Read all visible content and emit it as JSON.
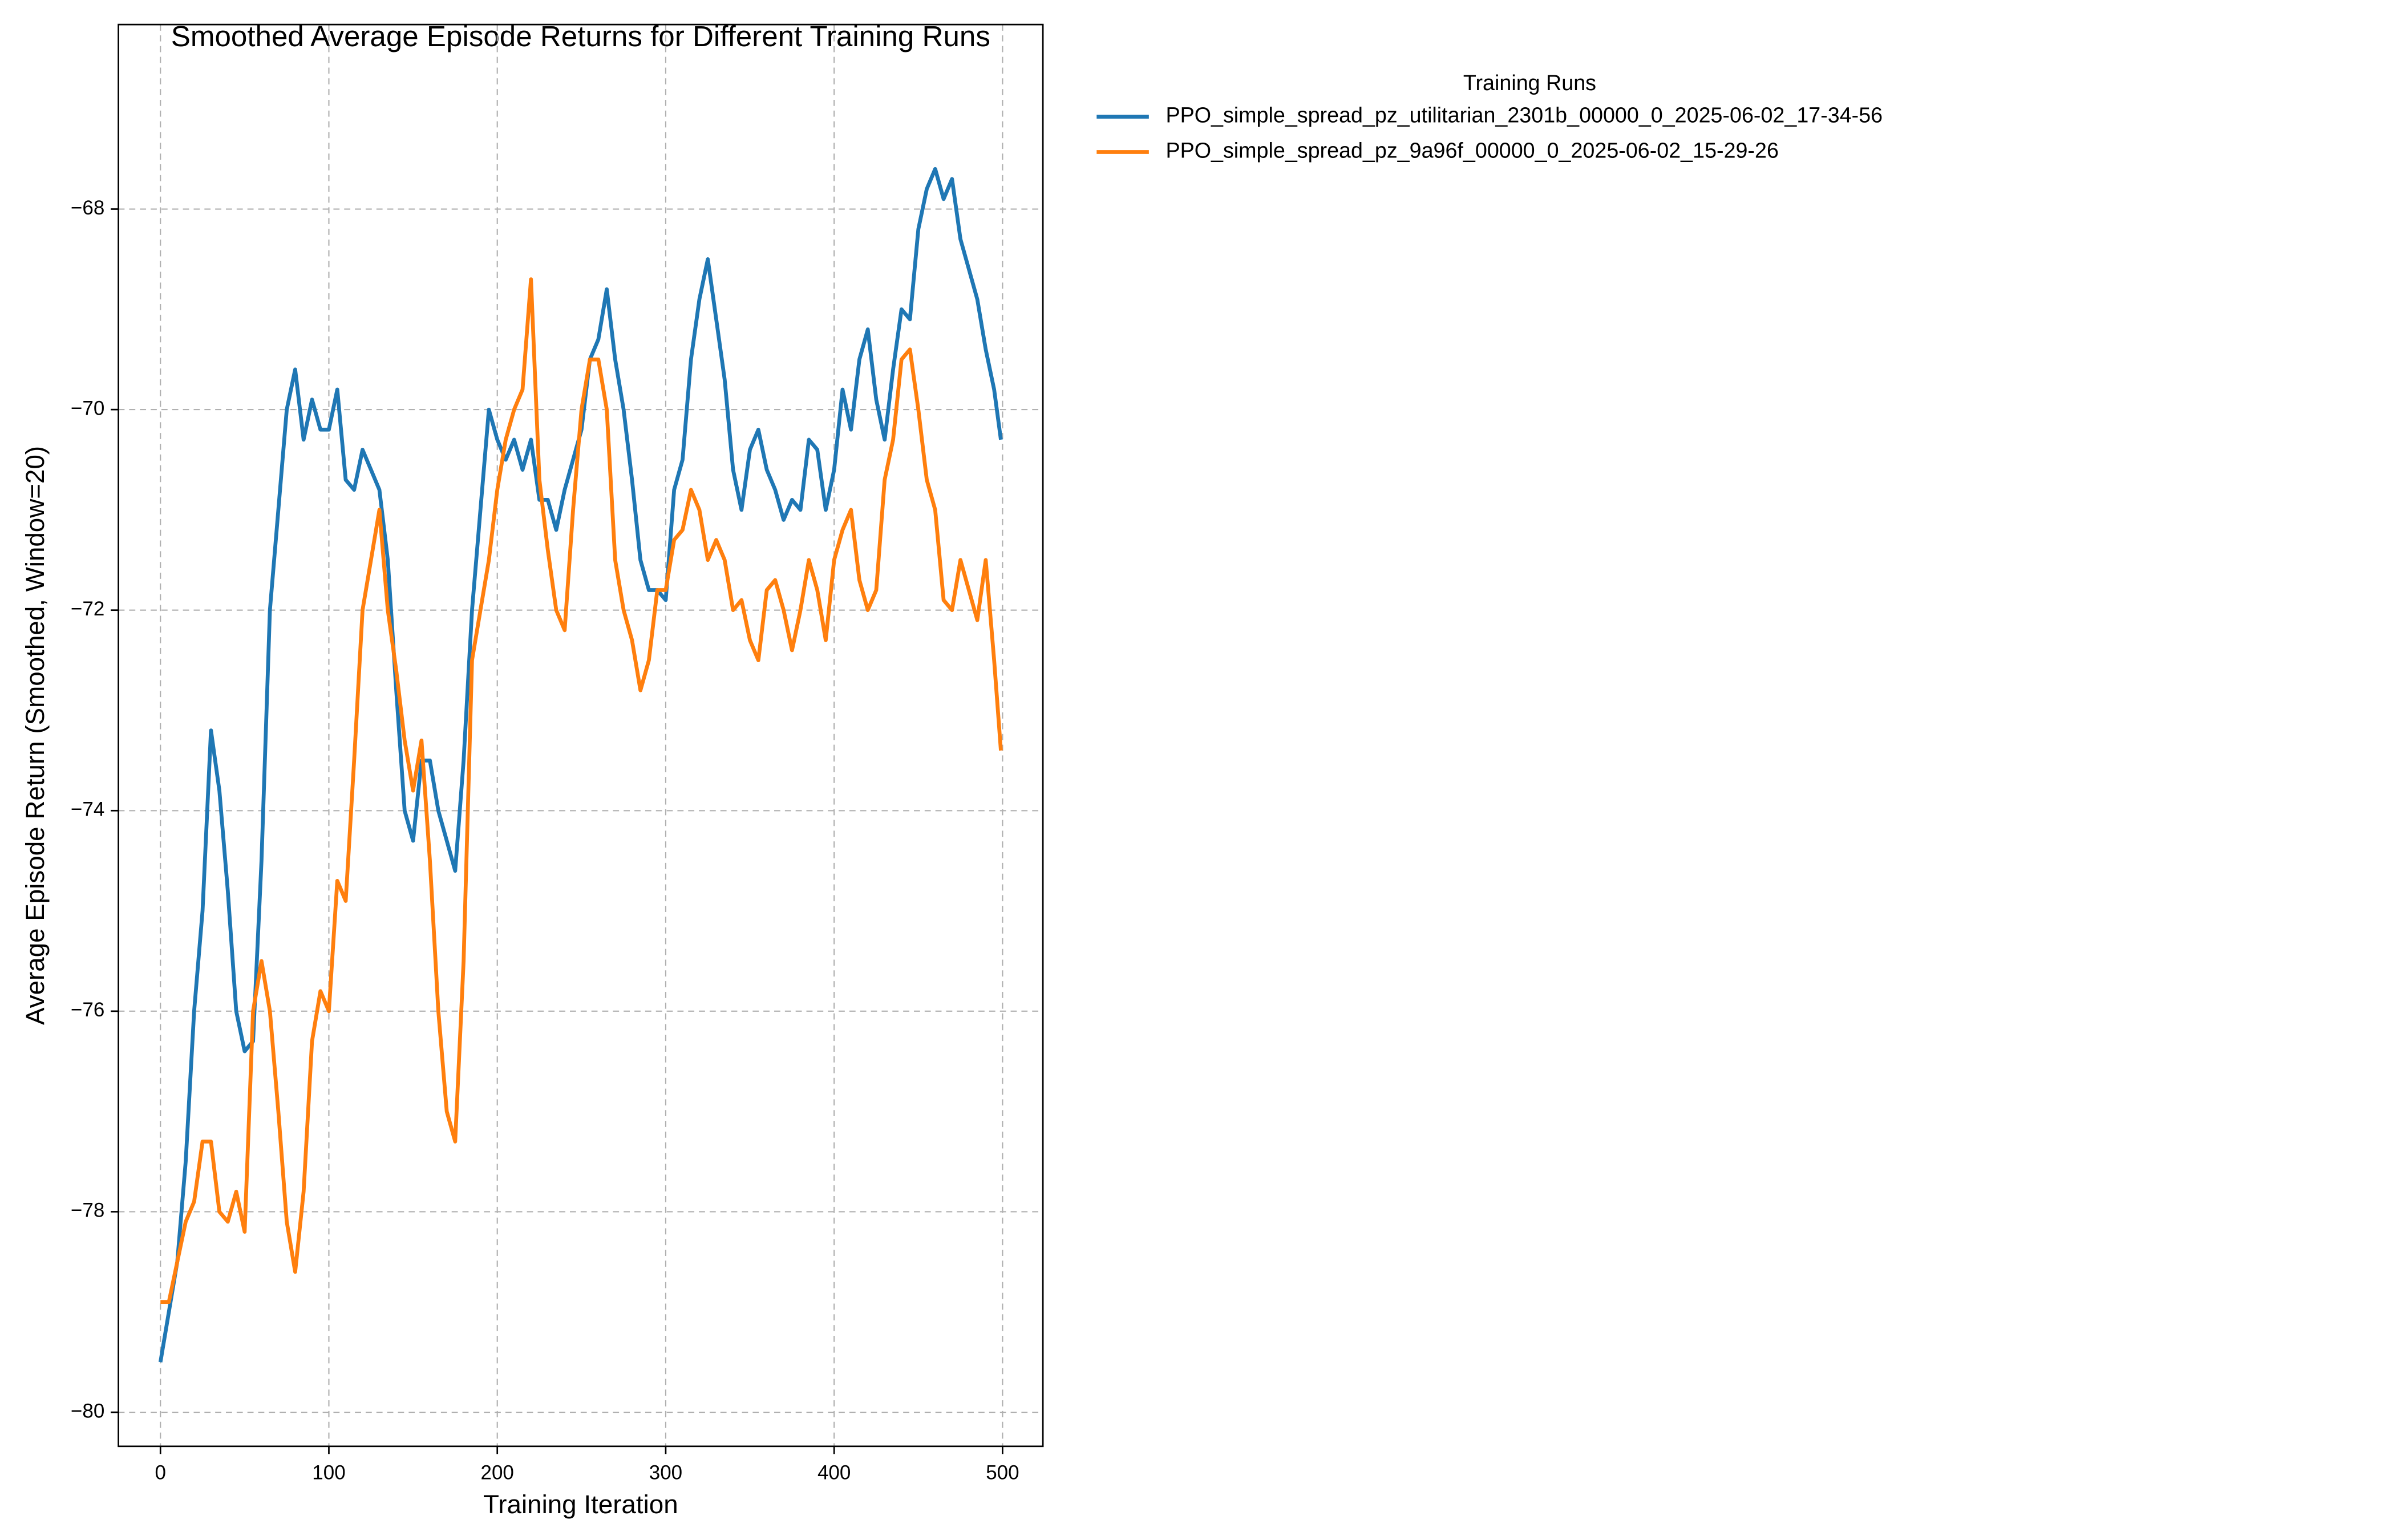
{
  "chart_data": {
    "type": "line",
    "title": "Smoothed Average Episode Returns for Different Training Runs",
    "x_label": "Training Iteration",
    "y_label": "Average Episode Return (Smoothed, Window=20)",
    "legend_title": "Training Runs",
    "legend_position": "outside upper right",
    "grid": true,
    "xlim": [
      -24.95,
      523.95
    ],
    "ylim": [
      -80.34,
      -66.16
    ],
    "xticks": [
      0,
      100,
      200,
      300,
      400,
      500
    ],
    "yticks": [
      {
        "value": -80,
        "label": "−80"
      },
      {
        "value": -78,
        "label": "−78"
      },
      {
        "value": -76,
        "label": "−76"
      },
      {
        "value": -74,
        "label": "−74"
      },
      {
        "value": -72,
        "label": "−72"
      },
      {
        "value": -70,
        "label": "−70"
      },
      {
        "value": -68,
        "label": "−68"
      }
    ],
    "x": [
      0,
      5,
      10,
      15,
      20,
      25,
      30,
      35,
      40,
      45,
      50,
      55,
      60,
      65,
      70,
      75,
      80,
      85,
      90,
      95,
      100,
      105,
      110,
      115,
      120,
      125,
      130,
      135,
      140,
      145,
      150,
      155,
      160,
      165,
      170,
      175,
      180,
      185,
      190,
      195,
      200,
      205,
      210,
      215,
      220,
      225,
      230,
      235,
      240,
      245,
      250,
      255,
      260,
      265,
      270,
      275,
      280,
      285,
      290,
      295,
      300,
      305,
      310,
      315,
      320,
      325,
      330,
      335,
      340,
      345,
      350,
      355,
      360,
      365,
      370,
      375,
      380,
      385,
      390,
      395,
      400,
      405,
      410,
      415,
      420,
      425,
      430,
      435,
      440,
      445,
      450,
      455,
      460,
      465,
      470,
      475,
      480,
      485,
      490,
      495,
      499
    ],
    "series": [
      {
        "name": "PPO_simple_spread_pz_utilitarian_2301b_00000_0_2025-06-02_17-34-56",
        "color": "#1f77b4",
        "values": [
          -79.5,
          -79.0,
          -78.5,
          -77.5,
          -76.0,
          -75.0,
          -73.2,
          -73.8,
          -74.8,
          -76.0,
          -76.4,
          -76.3,
          -74.5,
          -72.0,
          -71.0,
          -70.0,
          -69.6,
          -70.3,
          -69.9,
          -70.2,
          -70.2,
          -69.8,
          -70.7,
          -70.8,
          -70.4,
          -70.6,
          -70.8,
          -71.5,
          -72.8,
          -74.0,
          -74.3,
          -73.5,
          -73.5,
          -74.0,
          -74.3,
          -74.6,
          -73.5,
          -72.0,
          -71.0,
          -70.0,
          -70.3,
          -70.5,
          -70.3,
          -70.6,
          -70.3,
          -70.9,
          -70.9,
          -71.2,
          -70.8,
          -70.5,
          -70.2,
          -69.5,
          -69.3,
          -68.8,
          -69.5,
          -70.0,
          -70.7,
          -71.5,
          -71.8,
          -71.8,
          -71.9,
          -70.8,
          -70.5,
          -69.5,
          -68.9,
          -68.5,
          -69.1,
          -69.7,
          -70.6,
          -71.0,
          -70.4,
          -70.2,
          -70.6,
          -70.8,
          -71.1,
          -70.9,
          -71.0,
          -70.3,
          -70.4,
          -71.0,
          -70.6,
          -69.8,
          -70.2,
          -69.5,
          -69.2,
          -69.9,
          -70.3,
          -69.6,
          -69.0,
          -69.1,
          -68.2,
          -67.8,
          -67.6,
          -67.9,
          -67.7,
          -68.3,
          -68.6,
          -68.9,
          -69.4,
          -69.8,
          -70.3
        ]
      },
      {
        "name": "PPO_simple_spread_pz_9a96f_00000_0_2025-06-02_15-29-26",
        "color": "#ff7f0e",
        "values": [
          -78.9,
          -78.9,
          -78.5,
          -78.1,
          -77.9,
          -77.3,
          -77.3,
          -78.0,
          -78.1,
          -77.8,
          -78.2,
          -76.0,
          -75.5,
          -76.0,
          -77.0,
          -78.1,
          -78.6,
          -77.8,
          -76.3,
          -75.8,
          -76.0,
          -74.7,
          -74.9,
          -73.5,
          -72.0,
          -71.5,
          -71.0,
          -72.0,
          -72.6,
          -73.3,
          -73.8,
          -73.3,
          -74.5,
          -76.0,
          -77.0,
          -77.3,
          -75.5,
          -72.5,
          -72.0,
          -71.5,
          -70.8,
          -70.3,
          -70.0,
          -69.8,
          -68.7,
          -70.7,
          -71.4,
          -72.0,
          -72.2,
          -71.0,
          -70.0,
          -69.5,
          -69.5,
          -70.0,
          -71.5,
          -72.0,
          -72.3,
          -72.8,
          -72.5,
          -71.8,
          -71.8,
          -71.3,
          -71.2,
          -70.8,
          -71.0,
          -71.5,
          -71.3,
          -71.5,
          -72.0,
          -71.9,
          -72.3,
          -72.5,
          -71.8,
          -71.7,
          -72.0,
          -72.4,
          -72.0,
          -71.5,
          -71.8,
          -72.3,
          -71.5,
          -71.2,
          -71.0,
          -71.7,
          -72.0,
          -71.8,
          -70.7,
          -70.3,
          -69.5,
          -69.4,
          -70.0,
          -70.7,
          -71.0,
          -71.9,
          -72.0,
          -71.5,
          -71.8,
          -72.1,
          -71.5,
          -72.5,
          -73.4
        ]
      }
    ]
  }
}
